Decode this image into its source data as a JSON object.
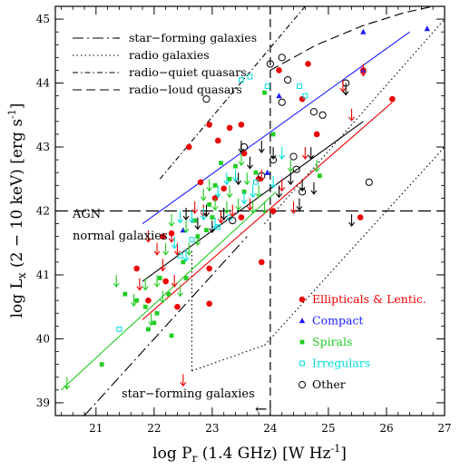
{
  "chart_data": {
    "type": "scatter",
    "xlabel_main": "log P",
    "xlabel_sub": "r",
    "xlabel_rest": " (1.4 GHz) [W Hz",
    "xlabel_sup": "-1",
    "xlabel_end": "]",
    "ylabel_main": "log L",
    "ylabel_sub": "x",
    "ylabel_rest": " (2 − 10 keV) [erg s",
    "ylabel_sup": "-1",
    "ylabel_end": "]",
    "xlim": [
      20.3,
      27
    ],
    "ylim": [
      38.8,
      45.2
    ],
    "xticks": [
      21,
      22,
      23,
      24,
      25,
      26,
      27
    ],
    "yticks": [
      39,
      40,
      41,
      42,
      43,
      44,
      45
    ],
    "line_legend": [
      {
        "label": "star−forming galaxies",
        "dash": "long-dash-dot"
      },
      {
        "label": "radio galaxies",
        "dash": "dot"
      },
      {
        "label": "radio−quiet quasars",
        "dash": "dash-dot"
      },
      {
        "label": "radio−loud quasars",
        "dash": "dash"
      }
    ],
    "marker_legend": [
      {
        "label": "Ellipticals & Lentic.",
        "color": "#ee0000",
        "marker": "circle-filled"
      },
      {
        "label": "Compact",
        "color": "#1a1aff",
        "marker": "triangle"
      },
      {
        "label": "Spirals",
        "color": "#22cc22",
        "marker": "square"
      },
      {
        "label": "Irregulars",
        "color": "#00dddd",
        "marker": "square-open"
      },
      {
        "label": "Other",
        "color": "#000000",
        "marker": "circle-open"
      }
    ],
    "annotations": {
      "agn": "AGN",
      "normal": "normal galaxies",
      "sfg": "star−forming galaxies",
      "arrow": "←"
    },
    "reference_lines": {
      "agn_y": 42,
      "radio_x": 24
    },
    "model_lines": [
      {
        "name": "star-forming",
        "style": "long-dash-dot",
        "x": [
          20.8,
          23.6
        ],
        "y": [
          38.8,
          41.6
        ]
      },
      {
        "name": "radio-quiet",
        "style": "dash-dot",
        "x": [
          22.1,
          24.6
        ],
        "y": [
          42.5,
          45.2
        ]
      },
      {
        "name": "radio-loud",
        "style": "dash",
        "x": [
          24.0,
          24.8,
          25.6,
          26.3,
          26.8
        ],
        "y": [
          44.2,
          44.6,
          44.9,
          45.1,
          45.2
        ]
      },
      {
        "name": "radio-galaxy-upper",
        "style": "dot",
        "x": [
          23.9,
          27.0
        ],
        "y": [
          41.8,
          45.0
        ]
      },
      {
        "name": "radio-galaxy-lower",
        "style": "dot",
        "x": [
          23.9,
          27.0
        ],
        "y": [
          39.9,
          43.0
        ]
      },
      {
        "name": "radio-galaxy-left",
        "style": "dot",
        "x": [
          22.65,
          23.9
        ],
        "y": [
          39.5,
          39.9
        ]
      },
      {
        "name": "radio-galaxy-vert",
        "style": "dot",
        "x": [
          22.65,
          22.65
        ],
        "y": [
          39.5,
          41.4
        ]
      }
    ],
    "fits": [
      {
        "color": "#1a1aff",
        "x": [
          21.8,
          26.4
        ],
        "y": [
          41.8,
          44.8
        ]
      },
      {
        "color": "#ee0000",
        "x": [
          21.8,
          26.1
        ],
        "y": [
          40.3,
          43.7
        ]
      },
      {
        "color": "#000000",
        "x": [
          21.8,
          25.6
        ],
        "y": [
          40.9,
          43.4
        ]
      },
      {
        "color": "#22cc22",
        "x": [
          20.4,
          24.1
        ],
        "y": [
          39.2,
          42.3
        ]
      }
    ],
    "series": [
      {
        "name": "Ellipticals & Lentic.",
        "color": "#ee0000",
        "marker": "circle-filled",
        "points": [
          [
            22.6,
            43.0
          ],
          [
            22.95,
            43.35
          ],
          [
            23.1,
            43.1
          ],
          [
            23.3,
            43.3
          ],
          [
            23.5,
            43.35
          ],
          [
            22.8,
            42.45
          ],
          [
            23.05,
            42.2
          ],
          [
            23.2,
            42.35
          ],
          [
            23.55,
            42.9
          ],
          [
            23.8,
            42.5
          ],
          [
            24.05,
            42.0
          ],
          [
            24.15,
            44.2
          ],
          [
            24.65,
            44.3
          ],
          [
            24.55,
            43.75
          ],
          [
            25.6,
            44.2
          ],
          [
            26.1,
            43.75
          ],
          [
            25.55,
            41.9
          ],
          [
            23.85,
            41.2
          ],
          [
            22.95,
            40.55
          ],
          [
            21.7,
            41.1
          ],
          [
            21.9,
            40.6
          ],
          [
            22.2,
            40.9
          ],
          [
            22.4,
            40.5
          ],
          [
            22.15,
            41.6
          ],
          [
            22.3,
            41.65
          ],
          [
            22.95,
            41.1
          ],
          [
            23.5,
            41.9
          ],
          [
            24.8,
            43.2
          ]
        ]
      },
      {
        "name": "Compact",
        "color": "#1a1aff",
        "marker": "triangle",
        "points": [
          [
            22.5,
            41.7
          ],
          [
            24.15,
            43.8
          ],
          [
            25.6,
            44.8
          ],
          [
            26.7,
            44.85
          ],
          [
            25.6,
            44.2
          ],
          [
            23.95,
            42.6
          ]
        ]
      },
      {
        "name": "Spirals",
        "color": "#22cc22",
        "marker": "square",
        "points": [
          [
            21.1,
            39.6
          ],
          [
            21.5,
            40.7
          ],
          [
            21.7,
            40.6
          ],
          [
            21.85,
            40.5
          ],
          [
            21.9,
            40.15
          ],
          [
            22.0,
            40.25
          ],
          [
            22.05,
            40.4
          ],
          [
            22.1,
            40.95
          ],
          [
            22.25,
            40.7
          ],
          [
            22.5,
            41.2
          ],
          [
            22.55,
            40.95
          ],
          [
            22.75,
            41.6
          ],
          [
            22.9,
            41.7
          ],
          [
            22.95,
            42.1
          ],
          [
            23.05,
            42.4
          ],
          [
            23.15,
            42.75
          ],
          [
            23.3,
            42.5
          ],
          [
            23.4,
            42.7
          ],
          [
            23.55,
            42.3
          ],
          [
            23.75,
            42.6
          ],
          [
            23.9,
            43.85
          ],
          [
            24.05,
            43.2
          ],
          [
            24.85,
            42.55
          ],
          [
            22.3,
            40.05
          ],
          [
            22.7,
            41.85
          ],
          [
            23.0,
            41.9
          ]
        ]
      },
      {
        "name": "Irregulars",
        "color": "#00dddd",
        "marker": "square-open",
        "points": [
          [
            21.4,
            40.15
          ],
          [
            22.45,
            41.3
          ],
          [
            22.65,
            41.55
          ],
          [
            23.5,
            44.05
          ],
          [
            23.65,
            44.1
          ],
          [
            23.95,
            43.95
          ],
          [
            24.5,
            43.95
          ],
          [
            24.6,
            43.8
          ],
          [
            23.75,
            42.45
          ],
          [
            23.1,
            41.75
          ],
          [
            23.3,
            41.9
          ]
        ]
      },
      {
        "name": "Other",
        "color": "#000000",
        "marker": "circle-open",
        "points": [
          [
            22.9,
            43.75
          ],
          [
            24.0,
            44.3
          ],
          [
            24.2,
            44.4
          ],
          [
            24.3,
            44.05
          ],
          [
            24.2,
            43.7
          ],
          [
            24.75,
            43.55
          ],
          [
            24.9,
            43.5
          ],
          [
            25.3,
            44.0
          ],
          [
            23.55,
            43.0
          ],
          [
            24.05,
            42.8
          ],
          [
            24.4,
            42.85
          ],
          [
            24.45,
            42.65
          ],
          [
            23.35,
            41.85
          ],
          [
            25.7,
            42.45
          ],
          [
            24.55,
            42.3
          ],
          [
            23.85,
            42.55
          ]
        ]
      },
      {
        "name": "upper limits (red)",
        "color": "#ee0000",
        "marker": "arrow-down",
        "points": [
          [
            22.3,
            41.6
          ],
          [
            22.4,
            41.4
          ],
          [
            22.15,
            41.15
          ],
          [
            22.35,
            40.9
          ],
          [
            22.7,
            42.05
          ],
          [
            22.85,
            42.0
          ],
          [
            23.15,
            41.9
          ],
          [
            23.35,
            42.0
          ],
          [
            23.65,
            42.1
          ],
          [
            23.85,
            42.55
          ],
          [
            24.2,
            42.4
          ],
          [
            24.6,
            42.9
          ],
          [
            24.4,
            42.05
          ],
          [
            25.4,
            43.5
          ],
          [
            25.6,
            44.2
          ],
          [
            25.25,
            43.95
          ],
          [
            22.5,
            39.35
          ],
          [
            21.75,
            40.85
          ],
          [
            21.9,
            41.6
          ],
          [
            22.05,
            41.4
          ]
        ]
      },
      {
        "name": "upper limits (green)",
        "color": "#22cc22",
        "marker": "arrow-down",
        "points": [
          [
            20.5,
            39.3
          ],
          [
            21.35,
            40.9
          ],
          [
            21.65,
            40.6
          ],
          [
            21.85,
            40.85
          ],
          [
            21.95,
            40.3
          ],
          [
            22.05,
            40.9
          ],
          [
            22.2,
            41.4
          ],
          [
            22.3,
            41.85
          ],
          [
            22.55,
            41.75
          ],
          [
            22.6,
            41.4
          ],
          [
            22.75,
            41.55
          ],
          [
            22.85,
            42.25
          ],
          [
            22.95,
            42.4
          ],
          [
            23.05,
            42.1
          ],
          [
            23.25,
            42.05
          ],
          [
            23.3,
            42.3
          ],
          [
            23.45,
            42.1
          ],
          [
            23.5,
            42.8
          ],
          [
            23.6,
            42.5
          ],
          [
            23.7,
            42.05
          ],
          [
            23.8,
            42.3
          ],
          [
            23.9,
            42.05
          ],
          [
            24.35,
            42.7
          ],
          [
            24.8,
            42.7
          ],
          [
            22.45,
            40.75
          ],
          [
            22.15,
            40.65
          ]
        ]
      },
      {
        "name": "upper limits (cyan)",
        "color": "#00dddd",
        "marker": "arrow-down",
        "points": [
          [
            22.45,
            41.9
          ],
          [
            22.65,
            41.9
          ],
          [
            22.85,
            41.95
          ],
          [
            23.1,
            42.3
          ],
          [
            23.25,
            42.5
          ],
          [
            23.4,
            42.55
          ],
          [
            23.55,
            42.2
          ],
          [
            23.7,
            42.3
          ],
          [
            24.05,
            42.45
          ],
          [
            24.2,
            42.9
          ],
          [
            22.55,
            41.3
          ],
          [
            23.05,
            41.8
          ],
          [
            22.35,
            41.5
          ]
        ]
      },
      {
        "name": "upper limits (black)",
        "color": "#000000",
        "marker": "arrow-down",
        "points": [
          [
            22.55,
            41.95
          ],
          [
            22.75,
            41.8
          ],
          [
            22.9,
            42.0
          ],
          [
            23.2,
            41.95
          ],
          [
            23.45,
            42.5
          ],
          [
            23.65,
            42.75
          ],
          [
            23.85,
            43.0
          ],
          [
            24.05,
            42.9
          ],
          [
            24.15,
            42.3
          ],
          [
            24.35,
            42.5
          ],
          [
            24.55,
            42.4
          ],
          [
            24.7,
            42.9
          ],
          [
            24.75,
            42.35
          ],
          [
            23.0,
            41.75
          ],
          [
            24.5,
            42.1
          ],
          [
            25.3,
            43.9
          ],
          [
            25.4,
            41.85
          ],
          [
            23.5,
            43.0
          ]
        ]
      }
    ]
  }
}
